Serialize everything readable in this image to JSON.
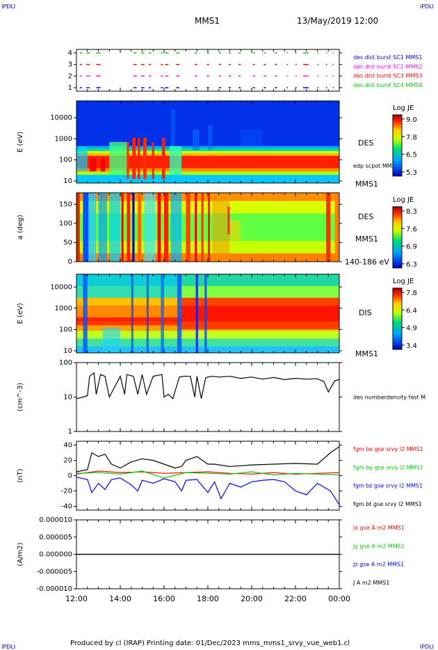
{
  "corner_labels": {
    "top_left": "IPDLI",
    "top_right": "IPDLI",
    "bottom_left": "IPDLI",
    "bottom_right": "IPDLI"
  },
  "header": {
    "spacecraft": "MMS1",
    "datetime": "13/May/2019 12:00"
  },
  "footer": "Produced by cl (IRAP)   Printing date: 01/Dec/2023   mms_mms1_srvy_vue_web1.cl",
  "colors": {
    "c1": "#0000ff",
    "c2": "#ff00ff",
    "c3": "#ff0000",
    "c4": "#00cc00",
    "bx": "#ff0000",
    "by": "#00cc00",
    "bz": "#0000ff",
    "bt": "#000000"
  },
  "chart_data": [
    {
      "id": "burst",
      "type": "scatter",
      "ylabel": "",
      "yticks": [
        "1",
        "2",
        "3",
        "4"
      ],
      "legend": [
        {
          "text": "des dist burst SC1 MMS1",
          "color": "#0000ff"
        },
        {
          "text": "des dist burst SC2 MMS2",
          "color": "#ff00ff"
        },
        {
          "text": "des dist burst SC3 MMS3",
          "color": "#ff0000"
        },
        {
          "text": "des dist burst SC4 MMS4",
          "color": "#00cc00"
        }
      ],
      "intervals_hours": [
        [
          12.15,
          12.25
        ],
        [
          12.45,
          12.6
        ],
        [
          12.9,
          13.1
        ],
        [
          14.6,
          14.75
        ],
        [
          14.95,
          15.1
        ],
        [
          15.3,
          15.4
        ],
        [
          15.85,
          15.95
        ],
        [
          16.05,
          16.2
        ],
        [
          16.55,
          16.7
        ],
        [
          17.4,
          17.5
        ],
        [
          17.95,
          18.05
        ],
        [
          18.5,
          18.6
        ],
        [
          18.95,
          19.05
        ],
        [
          19.4,
          19.5
        ],
        [
          20.05,
          20.15
        ],
        [
          20.55,
          20.65
        ],
        [
          21.05,
          21.15
        ],
        [
          21.6,
          21.65
        ],
        [
          22.0,
          22.05
        ],
        [
          22.35,
          22.6
        ],
        [
          23.0,
          23.05
        ],
        [
          23.4,
          23.45
        ],
        [
          23.7,
          23.75
        ]
      ]
    },
    {
      "id": "des_spectrogram",
      "type": "heatmap",
      "ylabel": "E (eV)",
      "yticks": [
        "10",
        "100",
        "1000",
        "10000"
      ],
      "ylim": [
        10,
        25000
      ],
      "yscale": "log",
      "right_labels": [
        "DES",
        "edp scpot MMS1",
        "MMS1"
      ],
      "colorbar": {
        "title": "Log JE",
        "ticks": [
          "9.0",
          "7.8",
          "6.5",
          "5.3"
        ]
      }
    },
    {
      "id": "des_pitch",
      "type": "heatmap",
      "ylabel": "a (deg)",
      "yticks": [
        "0",
        "50",
        "100",
        "150"
      ],
      "ylim": [
        0,
        180
      ],
      "right_labels": [
        "DES",
        "MMS1",
        "140-186 eV"
      ],
      "colorbar": {
        "title": "Log JE",
        "ticks": [
          "8.3",
          "7.6",
          "6.9",
          "6.3"
        ]
      }
    },
    {
      "id": "dis_spectrogram",
      "type": "heatmap",
      "ylabel": "E (eV)",
      "yticks": [
        "10",
        "100",
        "1000",
        "10000"
      ],
      "ylim": [
        10,
        25000
      ],
      "yscale": "log",
      "right_labels": [
        "DIS",
        "MMS1"
      ],
      "colorbar": {
        "title": "Log JE",
        "ticks": [
          "7.8",
          "6.4",
          "4.9",
          "3.4"
        ]
      }
    },
    {
      "id": "density",
      "type": "line",
      "ylabel": "(cm^-3)",
      "yticks": [
        "1",
        "10",
        "100"
      ],
      "ylim": [
        1,
        100
      ],
      "yscale": "log",
      "legend": [
        {
          "text": "des numberdensity fast M",
          "color": "#000000"
        }
      ],
      "series": [
        {
          "color": "#000000",
          "x": [
            12.0,
            12.3,
            12.5,
            12.6,
            12.8,
            12.9,
            13.1,
            13.3,
            13.5,
            14.0,
            14.2,
            14.3,
            14.6,
            14.8,
            15.0,
            15.2,
            15.5,
            15.9,
            16.0,
            16.2,
            16.4,
            16.7,
            16.9,
            17.2,
            17.4,
            17.5,
            17.7,
            17.9,
            18.0,
            18.2,
            18.5,
            19.0,
            19.5,
            20.0,
            20.5,
            21.0,
            21.5,
            22.0,
            22.5,
            23.0,
            23.3,
            23.5,
            23.8,
            24.0
          ],
          "y": [
            9,
            10,
            11,
            40,
            50,
            12,
            45,
            40,
            10,
            40,
            12,
            45,
            40,
            12,
            45,
            12,
            40,
            45,
            10,
            12,
            9,
            38,
            40,
            40,
            10,
            40,
            9,
            36,
            38,
            40,
            38,
            40,
            35,
            38,
            33,
            37,
            32,
            35,
            33,
            34,
            28,
            14,
            30,
            32
          ]
        }
      ]
    },
    {
      "id": "bfield",
      "type": "line",
      "ylabel": "(nT)",
      "yticks": [
        "-40",
        "-20",
        "0",
        "20",
        "40"
      ],
      "ylim": [
        -45,
        45
      ],
      "legend": [
        {
          "text": "fgm bx gse srvy l2 MMS1",
          "color": "#ff0000"
        },
        {
          "text": "fgm by gse srvy l2 MMS1",
          "color": "#00cc00"
        },
        {
          "text": "fgm bz gse srvy l2 MMS1",
          "color": "#0000ff"
        },
        {
          "text": "fgm bt gse srvy l2 MMS1",
          "color": "#000000"
        }
      ],
      "series": [
        {
          "name": "bt",
          "color": "#000000",
          "x": [
            12.0,
            12.5,
            12.7,
            13.0,
            13.3,
            13.6,
            14.0,
            14.5,
            15.0,
            15.5,
            16.0,
            16.5,
            16.8,
            17.0,
            17.5,
            18.0,
            18.3,
            19.0,
            20.0,
            21.0,
            22.0,
            23.0,
            23.6,
            24.0
          ],
          "y": [
            5,
            8,
            30,
            25,
            28,
            15,
            10,
            18,
            22,
            20,
            15,
            10,
            12,
            20,
            25,
            15,
            15,
            12,
            14,
            15,
            16,
            15,
            30,
            38
          ]
        },
        {
          "name": "bx",
          "color": "#ff0000",
          "x": [
            12.0,
            13.0,
            14.0,
            15.0,
            16.0,
            17.0,
            18.0,
            19.0,
            20.0,
            21.0,
            22.0,
            23.0,
            24.0
          ],
          "y": [
            2,
            6,
            4,
            5,
            3,
            4,
            5,
            3,
            2,
            4,
            2,
            3,
            4
          ]
        },
        {
          "name": "by",
          "color": "#00cc00",
          "x": [
            12.0,
            13.0,
            14.0,
            15.0,
            16.0,
            17.0,
            18.0,
            19.0,
            20.0,
            21.0,
            22.0,
            23.0,
            24.0
          ],
          "y": [
            3,
            4,
            2,
            6,
            -3,
            4,
            3,
            2,
            5,
            1,
            3,
            2,
            1
          ]
        },
        {
          "name": "bz",
          "color": "#0000ff",
          "x": [
            12.0,
            12.5,
            12.7,
            13.0,
            13.3,
            13.6,
            14.0,
            14.5,
            14.8,
            15.0,
            15.5,
            16.0,
            16.5,
            16.8,
            17.0,
            17.5,
            18.0,
            18.3,
            18.6,
            19.0,
            19.5,
            20.0,
            20.5,
            21.0,
            21.5,
            22.0,
            22.5,
            23.0,
            23.6,
            24.0
          ],
          "y": [
            -2,
            -5,
            -22,
            -10,
            -18,
            -5,
            -3,
            -12,
            -20,
            -6,
            -10,
            -4,
            -8,
            -20,
            -6,
            -5,
            -22,
            -8,
            -30,
            -10,
            -15,
            -8,
            -6,
            -5,
            -8,
            -20,
            -25,
            -10,
            -20,
            -38
          ]
        }
      ]
    },
    {
      "id": "current",
      "type": "line",
      "ylabel": "(A/m2)",
      "yticks": [
        "-0.000010",
        "-0.000005",
        "0.000000",
        "0.000005",
        "0.000010"
      ],
      "ylim": [
        -1e-05,
        1e-05
      ],
      "legend": [
        {
          "text": "Jx gse A m2 MMS1",
          "color": "#ff0000"
        },
        {
          "text": "Jy gse A m2 MMS1",
          "color": "#00cc00"
        },
        {
          "text": "Jz gse A m2 MMS1",
          "color": "#0000ff"
        },
        {
          "text": "J A m2 MMS1",
          "color": "#000000"
        }
      ],
      "series": [
        {
          "color": "#0000ff",
          "x": [
            12.0,
            24.0
          ],
          "y": [
            0,
            0
          ]
        },
        {
          "color": "#000000",
          "x": [
            12.0,
            24.0
          ],
          "y": [
            0,
            0
          ]
        }
      ]
    }
  ],
  "xaxis": {
    "ticks": [
      "12:00",
      "14:00",
      "16:00",
      "18:00",
      "20:00",
      "22:00",
      "00:00"
    ],
    "range_hours": [
      12,
      24
    ]
  }
}
